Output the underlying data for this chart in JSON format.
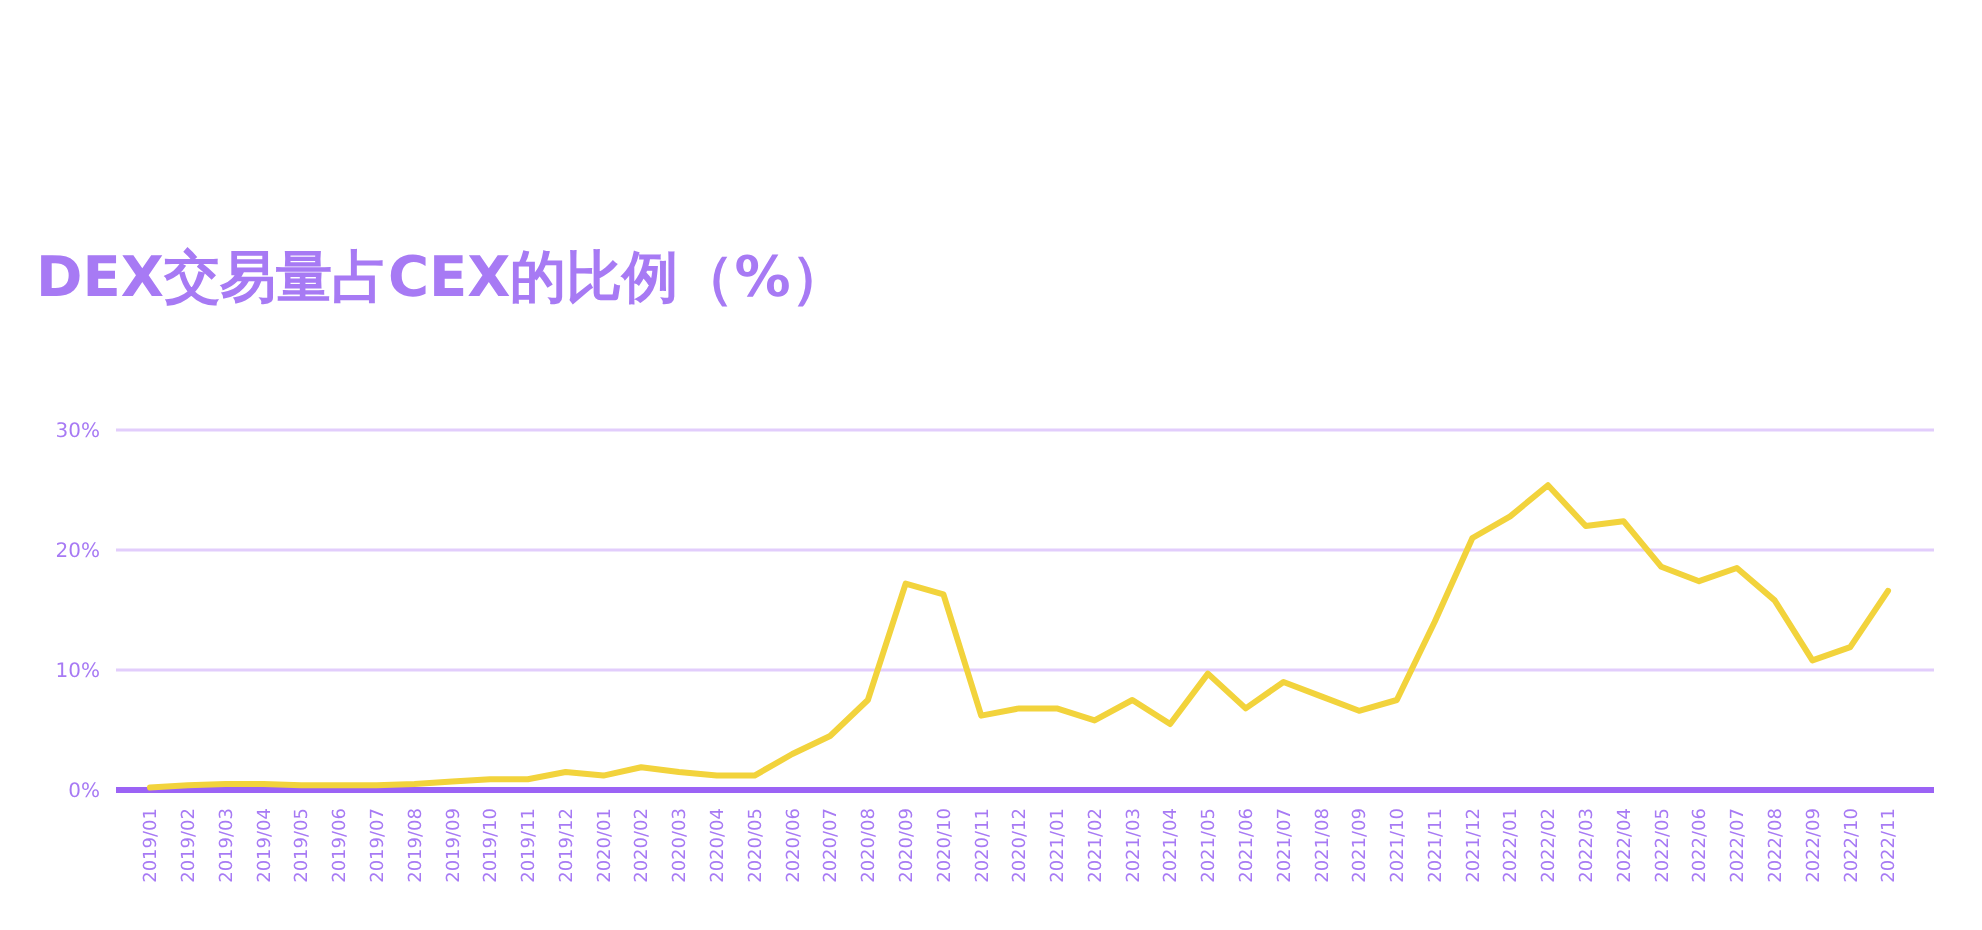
{
  "chart_data": {
    "type": "line",
    "title": "DEX交易量占CEX的比例（%）",
    "categories": [
      "2019/01",
      "2019/02",
      "2019/03",
      "2019/04",
      "2019/05",
      "2019/06",
      "2019/07",
      "2019/08",
      "2019/09",
      "2019/10",
      "2019/11",
      "2019/12",
      "2020/01",
      "2020/02",
      "2020/03",
      "2020/04",
      "2020/05",
      "2020/06",
      "2020/07",
      "2020/08",
      "2020/09",
      "2020/10",
      "2020/11",
      "2020/12",
      "2021/01",
      "2021/02",
      "2021/03",
      "2021/04",
      "2021/05",
      "2021/06",
      "2021/07",
      "2021/08",
      "2021/09",
      "2021/10",
      "2021/11",
      "2021/12",
      "2022/01",
      "2022/02",
      "2022/03",
      "2022/04",
      "2022/05",
      "2022/06",
      "2022/07",
      "2022/08",
      "2022/09",
      "2022/10",
      "2022/11"
    ],
    "series": [
      {
        "color": "#f2d33c",
        "values": [
          0.2,
          0.4,
          0.5,
          0.5,
          0.4,
          0.4,
          0.4,
          0.5,
          0.7,
          0.9,
          0.9,
          1.5,
          1.2,
          1.9,
          1.5,
          1.2,
          1.2,
          3.0,
          4.5,
          7.5,
          17.2,
          16.3,
          6.2,
          6.8,
          6.8,
          5.8,
          7.5,
          5.5,
          9.7,
          6.8,
          9.0,
          7.8,
          6.6,
          7.5,
          14.0,
          21.0,
          22.8,
          25.4,
          22.0,
          22.4,
          18.6,
          17.4,
          18.5,
          15.8,
          10.8,
          11.9,
          16.6
        ]
      }
    ],
    "ylim": [
      0,
      30
    ],
    "yticks": [
      {
        "value": 0,
        "label": "0%"
      },
      {
        "value": 10,
        "label": "10%"
      },
      {
        "value": 20,
        "label": "20%"
      },
      {
        "value": 30,
        "label": "30%"
      }
    ],
    "grid": "y",
    "marker": "none",
    "line_style": "solid"
  }
}
